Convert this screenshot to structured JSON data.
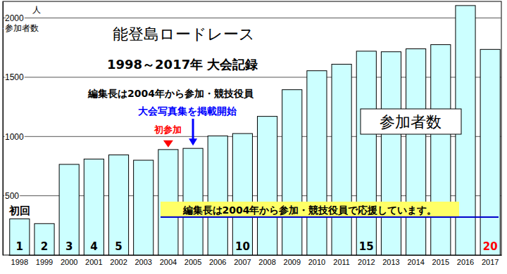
{
  "chart_data": {
    "type": "bar",
    "title": "能登島ロードレース",
    "subtitle": "1998～2017年 大会記録",
    "y_label": "参加者数",
    "y_unit": "人",
    "categories": [
      "1998",
      "1999",
      "2000",
      "2001",
      "2002",
      "2003",
      "2004",
      "2005",
      "2006",
      "2007",
      "2008",
      "2009",
      "2010",
      "2011",
      "2012",
      "2013",
      "2014",
      "2015",
      "2016",
      "2017"
    ],
    "values": [
      305,
      265,
      765,
      810,
      845,
      800,
      890,
      900,
      1005,
      1025,
      1170,
      1395,
      1555,
      1610,
      1720,
      1715,
      1740,
      1775,
      2105,
      1735
    ],
    "color": "#ccffff",
    "ylim": [
      0,
      2140
    ],
    "yticks": [
      500,
      1000,
      1500,
      2000
    ],
    "grid": true,
    "annotations": [
      {
        "text": "編集長は2004年から参加・競技役員"
      },
      {
        "text": "大会写真集を掲載開始",
        "category": "2005",
        "color": "#0000ff"
      },
      {
        "text": "初参加",
        "category": "2004",
        "color": "#ff0000"
      },
      {
        "text": "参加者数"
      },
      {
        "text": "編集長は2004年から参加・競技役員で応援しています。"
      },
      {
        "text": "初回",
        "category": "1998"
      }
    ],
    "edition_labels": [
      {
        "text": "1",
        "category": "1998"
      },
      {
        "text": "2",
        "category": "1999"
      },
      {
        "text": "3",
        "category": "2000"
      },
      {
        "text": "4",
        "category": "2001"
      },
      {
        "text": "5",
        "category": "2002"
      },
      {
        "text": "10",
        "category": "2007"
      },
      {
        "text": "15",
        "category": "2012"
      },
      {
        "text": "20",
        "category": "2017",
        "color": "#ff0000"
      }
    ]
  }
}
